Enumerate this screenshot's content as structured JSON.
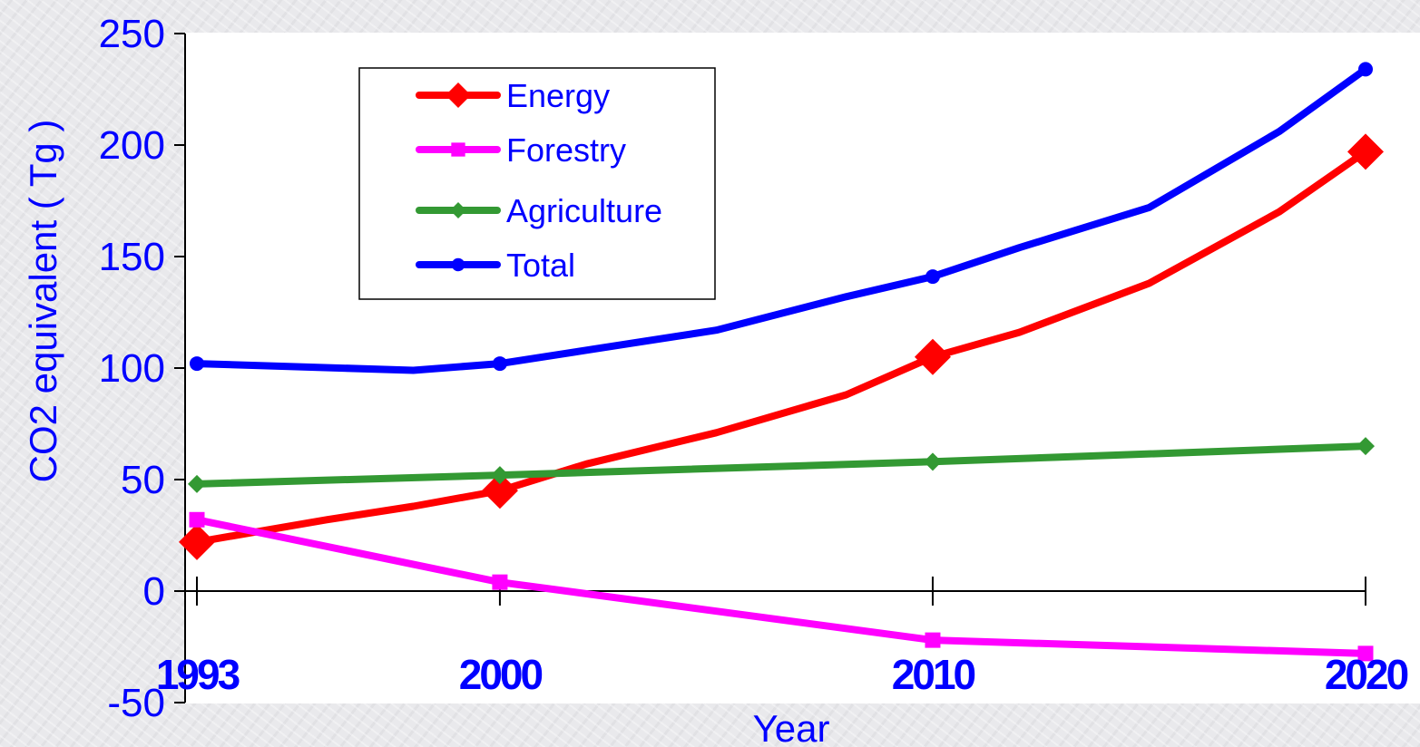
{
  "chart_data": {
    "type": "line",
    "xlabel": "Year",
    "ylabel": "CO2 equivalent ( Tg )",
    "ylim": [
      -50,
      250
    ],
    "yticks": [
      -50,
      0,
      50,
      100,
      150,
      200,
      250
    ],
    "xlim": [
      1993,
      2020
    ],
    "xticks": [
      "1993",
      "2000",
      "2010",
      "2020"
    ],
    "grid": false,
    "legend": "top-left, inside",
    "series": [
      {
        "name": "Energy",
        "color": "#ff0000",
        "marker": "diamond",
        "x": [
          1993,
          1996,
          1998,
          2000,
          2002,
          2005,
          2008,
          2010,
          2012,
          2015,
          2018,
          2020
        ],
        "y": [
          22,
          32,
          38,
          45,
          57,
          71,
          88,
          105,
          116,
          138,
          170,
          197
        ],
        "marked_x": [
          1993,
          2000,
          2010,
          2020
        ]
      },
      {
        "name": "Forestry",
        "color": "#ff00ff",
        "marker": "square",
        "x": [
          1993,
          2000,
          2010,
          2020
        ],
        "y": [
          32,
          4,
          -22,
          -28
        ],
        "marked_x": [
          1993,
          2000,
          2010,
          2020
        ]
      },
      {
        "name": "Agriculture",
        "color": "#339933",
        "marker": "diamond",
        "x": [
          1993,
          2000,
          2010,
          2020
        ],
        "y": [
          48,
          52,
          58,
          65
        ],
        "marked_x": [
          1993,
          2000,
          2010,
          2020
        ]
      },
      {
        "name": "Total",
        "color": "#0000ff",
        "marker": "circle",
        "x": [
          1993,
          1998,
          2000,
          2002,
          2005,
          2008,
          2010,
          2012,
          2015,
          2018,
          2020
        ],
        "y": [
          102,
          99,
          102,
          108,
          117,
          132,
          141,
          154,
          172,
          206,
          234
        ],
        "marked_x": [
          1993,
          2000,
          2010,
          2020
        ]
      }
    ]
  }
}
